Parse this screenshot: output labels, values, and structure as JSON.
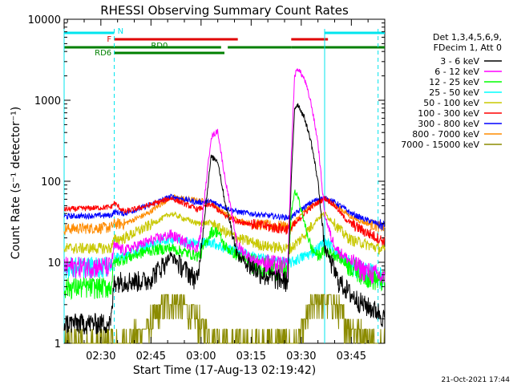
{
  "chart_data": {
    "type": "line",
    "title": "RHESSI Observing Summary Count Rates",
    "xlabel": "Start Time (17-Aug-13 02:19:42)",
    "ylabel": "Count Rate (s⁻¹ detector⁻¹)",
    "yscale": "log",
    "ylim": [
      1,
      10000
    ],
    "xlim_minutes_after_0219": [
      0,
      96
    ],
    "x_ticks": [
      "02:30",
      "02:45",
      "03:00",
      "03:15",
      "03:30",
      "03:45"
    ],
    "y_ticks": [
      "1",
      "10",
      "100",
      "1000",
      "10000"
    ],
    "footer_date": "21-Oct-2021 17:44",
    "legend": {
      "header": [
        "Det 1,3,4,5,6,9,",
        "FDecim 1, Att 0"
      ],
      "placement": "right"
    },
    "state_bars": {
      "N": {
        "label": "N",
        "color": "#00e5ee",
        "x": [
          [
            0,
            15
          ],
          [
            78,
            96
          ]
        ]
      },
      "F": {
        "label": "F",
        "color": "#e00000",
        "x": [
          [
            15,
            52
          ],
          [
            68,
            79
          ]
        ]
      },
      "RD0": {
        "label": "RD0",
        "color": "#008000",
        "x": [
          [
            0,
            47
          ],
          [
            49,
            68
          ],
          [
            68,
            96
          ]
        ]
      },
      "RD6": {
        "label": "RD6",
        "color": "#008000",
        "x": [
          [
            15,
            48
          ]
        ]
      }
    },
    "vlines": [
      {
        "x": 0,
        "style": "solid",
        "color": "#00e5ee"
      },
      {
        "x": 15,
        "style": "dashed",
        "color": "#00e5ee"
      },
      {
        "x": 78,
        "style": "solid",
        "color": "#00e5ee"
      },
      {
        "x": 94,
        "style": "dashed",
        "color": "#00e5ee"
      }
    ],
    "series": [
      {
        "name": "3 - 6 keV",
        "color": "#000000",
        "x": [
          0,
          14,
          15,
          18,
          25,
          32,
          40,
          41,
          44,
          46,
          48,
          52,
          56,
          60,
          66,
          67,
          68,
          69,
          70,
          72,
          74,
          76,
          78,
          80,
          82,
          84,
          86,
          90,
          94,
          96
        ],
        "y": [
          1.8,
          1.8,
          6,
          6,
          6,
          12,
          6,
          15,
          200,
          180,
          60,
          12,
          9,
          7,
          6,
          6,
          100,
          800,
          900,
          600,
          300,
          100,
          15,
          10,
          6,
          5,
          4,
          3,
          2.5,
          2
        ]
      },
      {
        "name": "6 - 12 keV",
        "color": "#ff00ff",
        "x": [
          0,
          14,
          15,
          18,
          25,
          32,
          40,
          41,
          44,
          46,
          48,
          52,
          56,
          60,
          66,
          67,
          68,
          69,
          70,
          72,
          74,
          76,
          78,
          80,
          82,
          84,
          86,
          90,
          94,
          96
        ],
        "y": [
          9,
          9,
          16,
          14,
          18,
          22,
          15,
          25,
          350,
          420,
          120,
          16,
          11,
          10,
          9,
          9,
          200,
          2000,
          2500,
          1800,
          900,
          300,
          40,
          20,
          14,
          12,
          10,
          8,
          7,
          6
        ]
      },
      {
        "name": "12 - 25 keV",
        "color": "#00ff00",
        "x": [
          0,
          14,
          15,
          18,
          25,
          32,
          40,
          41,
          44,
          46,
          48,
          52,
          56,
          60,
          66,
          67,
          68,
          69,
          70,
          72,
          74,
          76,
          78,
          80,
          82,
          84,
          86,
          90,
          94,
          96
        ],
        "y": [
          5,
          5,
          10,
          11,
          14,
          15,
          12,
          13,
          24,
          24,
          16,
          12,
          10,
          9,
          8,
          8,
          40,
          75,
          65,
          30,
          15,
          12,
          14,
          13,
          12,
          10,
          9,
          7,
          6,
          6
        ]
      },
      {
        "name": "25 - 50 keV",
        "color": "#00ffff",
        "x": [
          0,
          14,
          15,
          18,
          25,
          32,
          40,
          44,
          48,
          52,
          56,
          60,
          66,
          68,
          70,
          72,
          74,
          76,
          78,
          80,
          82,
          84,
          86,
          90,
          94,
          96
        ],
        "y": [
          9,
          9,
          11,
          12,
          16,
          20,
          17,
          18,
          15,
          14,
          12,
          11,
          10,
          10,
          11,
          12,
          13,
          15,
          18,
          16,
          13,
          11,
          9,
          8,
          7,
          6
        ]
      },
      {
        "name": "50 - 100 keV",
        "color": "#c8c800",
        "x": [
          0,
          14,
          15,
          18,
          25,
          32,
          40,
          44,
          48,
          52,
          56,
          60,
          66,
          68,
          70,
          72,
          74,
          76,
          78,
          80,
          82,
          84,
          86,
          90,
          94,
          96
        ],
        "y": [
          15,
          15,
          19,
          20,
          28,
          40,
          30,
          31,
          24,
          20,
          18,
          16,
          15,
          15,
          18,
          22,
          28,
          35,
          40,
          33,
          27,
          22,
          19,
          17,
          15,
          14
        ]
      },
      {
        "name": "100 - 300 keV",
        "color": "#ff0000",
        "x": [
          0,
          14,
          15,
          18,
          25,
          32,
          40,
          44,
          48,
          52,
          56,
          60,
          66,
          68,
          70,
          72,
          74,
          76,
          78,
          80,
          82,
          84,
          86,
          90,
          94,
          96
        ],
        "y": [
          45,
          48,
          54,
          42,
          50,
          62,
          45,
          52,
          38,
          32,
          30,
          28,
          26,
          26,
          32,
          40,
          48,
          55,
          62,
          55,
          45,
          35,
          30,
          24,
          20,
          18
        ]
      },
      {
        "name": "300 - 800 keV",
        "color": "#0000ff",
        "x": [
          0,
          14,
          15,
          18,
          25,
          32,
          40,
          44,
          48,
          52,
          56,
          60,
          66,
          68,
          70,
          72,
          74,
          76,
          78,
          80,
          82,
          84,
          86,
          90,
          94,
          96
        ],
        "y": [
          37,
          38,
          42,
          40,
          50,
          65,
          55,
          56,
          48,
          42,
          40,
          38,
          36,
          36,
          42,
          48,
          55,
          60,
          62,
          58,
          52,
          46,
          40,
          34,
          30,
          28
        ]
      },
      {
        "name": "800 - 7000 keV",
        "color": "#ff8c00",
        "x": [
          0,
          14,
          15,
          18,
          25,
          32,
          40,
          44,
          48,
          52,
          56,
          60,
          66,
          68,
          70,
          72,
          74,
          76,
          78,
          80,
          82,
          84,
          86,
          90,
          94,
          96
        ],
        "y": [
          26,
          27,
          30,
          30,
          40,
          64,
          58,
          56,
          40,
          33,
          30,
          29,
          28,
          28,
          35,
          42,
          50,
          56,
          60,
          55,
          48,
          42,
          36,
          31,
          28,
          27
        ]
      },
      {
        "name": "7000 - 15000 keV",
        "color": "#8b8b00",
        "x": [
          0,
          15,
          15.1,
          18,
          25,
          30,
          32,
          35,
          40,
          41,
          44,
          48,
          52,
          56,
          60,
          62,
          66,
          68,
          70,
          72,
          74,
          76,
          78,
          80,
          82,
          84,
          86,
          90,
          94,
          96
        ],
        "y": [
          1,
          1,
          1,
          1,
          1.6,
          3,
          3.5,
          3,
          2,
          1.6,
          1.3,
          1,
          1,
          1,
          1,
          1,
          1,
          1,
          1,
          1.7,
          2.8,
          3.5,
          3.8,
          3.4,
          2.6,
          2,
          1.7,
          1.2,
          1,
          1
        ]
      }
    ]
  }
}
